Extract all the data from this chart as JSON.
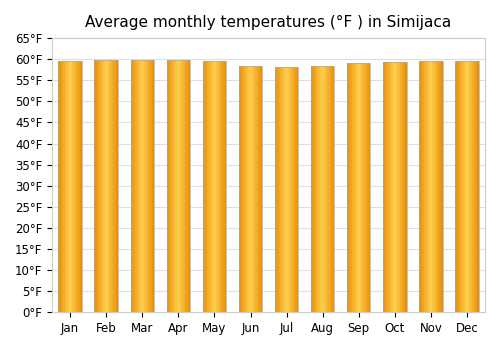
{
  "title": "Average monthly temperatures (°F ) in Simijaca",
  "months": [
    "Jan",
    "Feb",
    "Mar",
    "Apr",
    "May",
    "Jun",
    "Jul",
    "Aug",
    "Sep",
    "Oct",
    "Nov",
    "Dec"
  ],
  "values": [
    59.5,
    59.7,
    59.7,
    59.7,
    59.5,
    58.3,
    58.1,
    58.5,
    59.0,
    59.4,
    59.5,
    59.5
  ],
  "ylim": [
    0,
    65
  ],
  "yticks": [
    0,
    5,
    10,
    15,
    20,
    25,
    30,
    35,
    40,
    45,
    50,
    55,
    60,
    65
  ],
  "ytick_labels": [
    "0°F",
    "5°F",
    "10°F",
    "15°F",
    "20°F",
    "25°F",
    "30°F",
    "35°F",
    "40°F",
    "45°F",
    "50°F",
    "55°F",
    "60°F",
    "65°F"
  ],
  "bar_color_dark": "#E8900A",
  "bar_color_light": "#FFD050",
  "bar_edge_color": "#AAAAAA",
  "background_color": "#ffffff",
  "grid_color": "#DDDDEE",
  "title_fontsize": 11,
  "tick_fontsize": 8.5,
  "bar_width": 0.65,
  "n_grad": 30
}
